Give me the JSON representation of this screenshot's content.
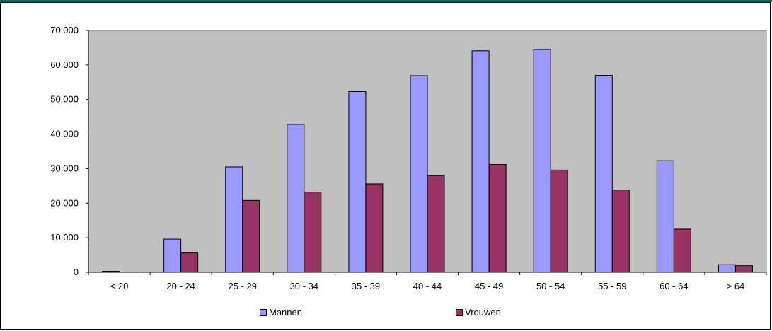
{
  "colors": {
    "topbar": "#0a6a5a",
    "plot_bg": "#c0c0c0",
    "mannen": "#9999ff",
    "vrouwen": "#993366"
  },
  "chart_data": {
    "type": "bar",
    "categories": [
      "< 20",
      "20 - 24",
      "25 - 29",
      "30 - 34",
      "35 - 39",
      "40 - 44",
      "45 - 49",
      "50 - 54",
      "55 - 59",
      "60 - 64",
      "> 64"
    ],
    "series": [
      {
        "name": "Mannen",
        "values": [
          300,
          9600,
          30500,
          42800,
          52300,
          56900,
          64100,
          64500,
          57000,
          32300,
          2200
        ]
      },
      {
        "name": "Vrouwen",
        "values": [
          100,
          5600,
          20800,
          23200,
          25600,
          28000,
          31200,
          29600,
          23800,
          12500,
          1900
        ]
      }
    ],
    "yticks": [
      "0",
      "10.000",
      "20.000",
      "30.000",
      "40.000",
      "50.000",
      "60.000",
      "70.000"
    ],
    "ylim": [
      0,
      70000
    ],
    "grid": false,
    "legend_position": "bottom",
    "title": "",
    "xlabel": "",
    "ylabel": ""
  }
}
